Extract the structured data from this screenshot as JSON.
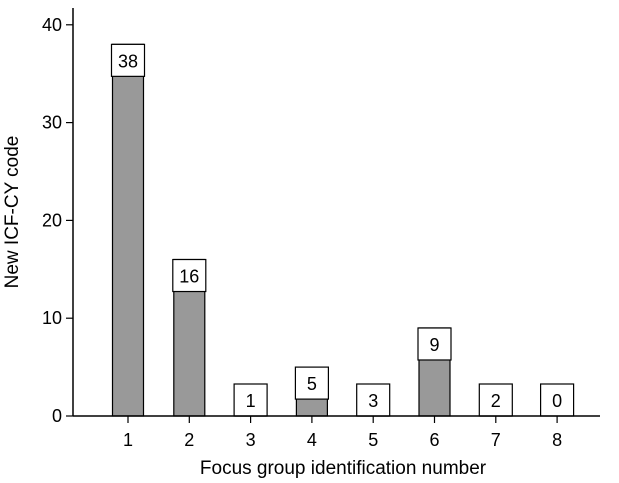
{
  "chart_data": {
    "type": "bar",
    "categories": [
      "1",
      "2",
      "3",
      "4",
      "5",
      "6",
      "7",
      "8"
    ],
    "values": [
      38,
      16,
      1,
      5,
      3,
      9,
      2,
      0
    ],
    "xlabel": "Focus group identification number",
    "ylabel": "New ICF-CY code",
    "ylim": [
      0,
      42
    ],
    "yticks": [
      "0",
      "10",
      "20",
      "30",
      "40"
    ],
    "grid": false,
    "colors": {
      "bar": "#999999",
      "label_box": "#ffffff",
      "outline": "#000000"
    }
  }
}
